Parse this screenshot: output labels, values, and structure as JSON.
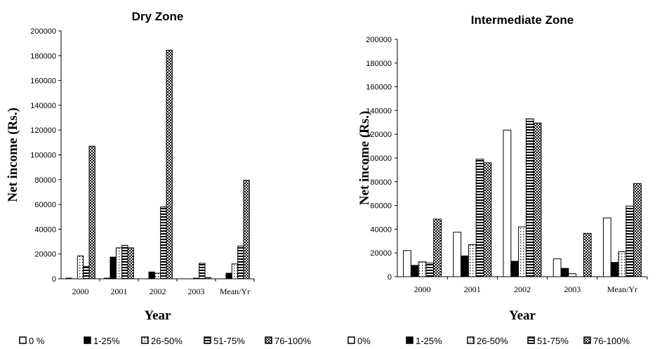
{
  "chart_data": [
    {
      "type": "bar",
      "title": "Dry Zone",
      "xlabel": "Year",
      "ylabel": "Net income (Rs.)",
      "ylim": [
        0,
        200000
      ],
      "yticks": [
        0,
        20000,
        40000,
        60000,
        80000,
        100000,
        120000,
        140000,
        160000,
        180000,
        200000
      ],
      "categories": [
        "2000",
        "2001",
        "2002",
        "2003",
        "Mean/Yr"
      ],
      "legend_position": "bottom",
      "series": [
        {
          "name": "0 %",
          "pattern": "white",
          "values": [
            500,
            500,
            0,
            0,
            0
          ]
        },
        {
          "name": "1-25%",
          "pattern": "black",
          "values": [
            0,
            17500,
            5500,
            0,
            4500
          ]
        },
        {
          "name": "26-50%",
          "pattern": "dots",
          "values": [
            18500,
            25000,
            4500,
            500,
            12000
          ]
        },
        {
          "name": "51-75%",
          "pattern": "hstripes",
          "values": [
            10000,
            27000,
            58000,
            12500,
            26500
          ]
        },
        {
          "name": "76-100%",
          "pattern": "checker",
          "values": [
            107000,
            25000,
            184500,
            1000,
            79500
          ]
        }
      ]
    },
    {
      "type": "bar",
      "title": "Intermediate Zone",
      "xlabel": "Year",
      "ylabel": "Net income (Rs.)",
      "ylim": [
        0,
        200000
      ],
      "yticks": [
        0,
        20000,
        40000,
        60000,
        80000,
        100000,
        120000,
        140000,
        160000,
        180000,
        200000
      ],
      "categories": [
        "2000",
        "2001",
        "2002",
        "2003",
        "Mean/Yr"
      ],
      "legend_position": "bottom",
      "series": [
        {
          "name": "0%",
          "pattern": "white",
          "values": [
            22000,
            37500,
            123500,
            15000,
            49500
          ]
        },
        {
          "name": "1-25%",
          "pattern": "black",
          "values": [
            9500,
            17500,
            13000,
            7000,
            12000
          ]
        },
        {
          "name": "26-50%",
          "pattern": "dots",
          "values": [
            12500,
            27000,
            42000,
            2500,
            21000
          ]
        },
        {
          "name": "51-75%",
          "pattern": "hstripes",
          "values": [
            11500,
            99000,
            133000,
            0,
            59500
          ]
        },
        {
          "name": "76-100%",
          "pattern": "checker",
          "values": [
            48500,
            96000,
            129500,
            36500,
            78500
          ]
        }
      ]
    }
  ]
}
